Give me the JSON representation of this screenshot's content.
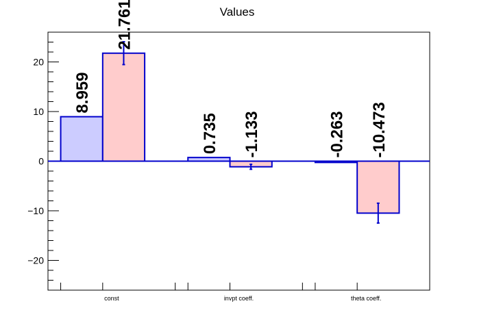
{
  "chart_data": {
    "type": "bar",
    "title": "Values",
    "xlabel": "",
    "ylabel": "",
    "categories": [
      "const",
      "invpt coeff.",
      "theta coeff."
    ],
    "ylim": [
      -26,
      26
    ],
    "yticks": [
      -20,
      -10,
      0,
      10,
      20
    ],
    "series": [
      {
        "values": [
          8.959,
          0.735,
          -0.263
        ],
        "labels": [
          "8.959",
          "0.735",
          "-0.263"
        ],
        "errors": [
          0,
          0,
          0
        ],
        "fill": "#ccccff",
        "stroke": "#0000cc"
      },
      {
        "values": [
          21.761,
          -1.133,
          -10.473
        ],
        "labels": [
          "21.761",
          "-1.133",
          "-10.473"
        ],
        "errors": [
          2.3,
          0.5,
          2.0
        ],
        "fill": "#ffcccc",
        "stroke": "#0000cc"
      }
    ]
  }
}
